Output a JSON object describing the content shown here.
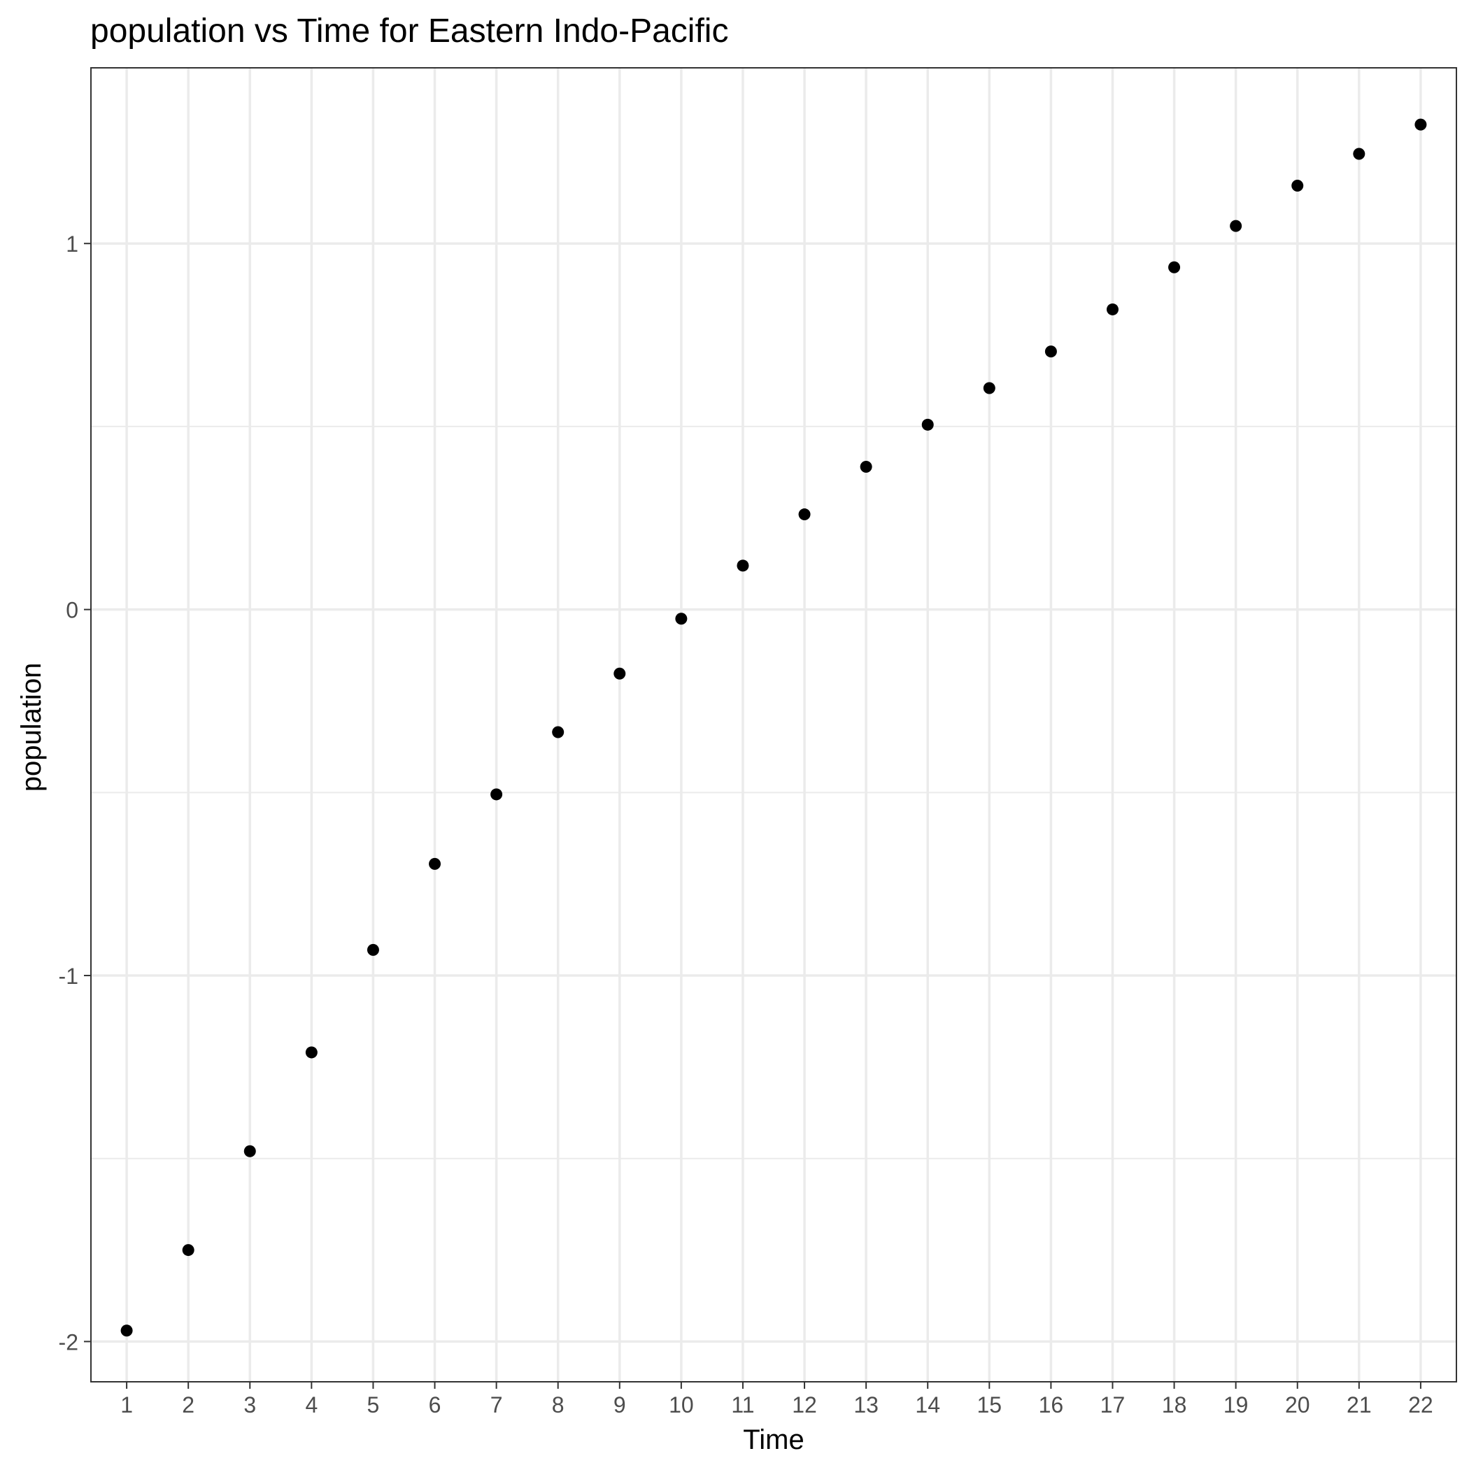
{
  "chart_data": {
    "type": "scatter",
    "title": "population  vs Time for Eastern Indo-Pacific",
    "xlabel": "Time",
    "ylabel": "population",
    "x_ticks": [
      "1",
      "2",
      "3",
      "4",
      "5",
      "6",
      "7",
      "8",
      "9",
      "10",
      "11",
      "12",
      "13",
      "14",
      "15",
      "16",
      "17",
      "18",
      "19",
      "20",
      "21",
      "22"
    ],
    "y_ticks": [
      {
        "value": -2,
        "label": "-2"
      },
      {
        "value": -1,
        "label": "-1"
      },
      {
        "value": 0,
        "label": "0"
      },
      {
        "value": 1,
        "label": "1"
      }
    ],
    "x": [
      1,
      2,
      3,
      4,
      5,
      6,
      7,
      8,
      9,
      10,
      11,
      12,
      13,
      14,
      15,
      16,
      17,
      18,
      19,
      20,
      21,
      22
    ],
    "y": [
      -1.97,
      -1.75,
      -1.48,
      -1.21,
      -0.93,
      -0.695,
      -0.505,
      -0.335,
      -0.175,
      -0.025,
      0.12,
      0.26,
      0.39,
      0.505,
      0.605,
      0.705,
      0.82,
      0.935,
      1.048,
      1.158,
      1.245,
      1.325
    ],
    "xlim": [
      0.42,
      22.58
    ],
    "ylim": [
      -2.11,
      1.48
    ],
    "grid": true,
    "point_color": "#000000",
    "grid_color": "#ebebeb",
    "panel_border_color": "#333333",
    "tick_label_color": "#4d4d4d"
  }
}
